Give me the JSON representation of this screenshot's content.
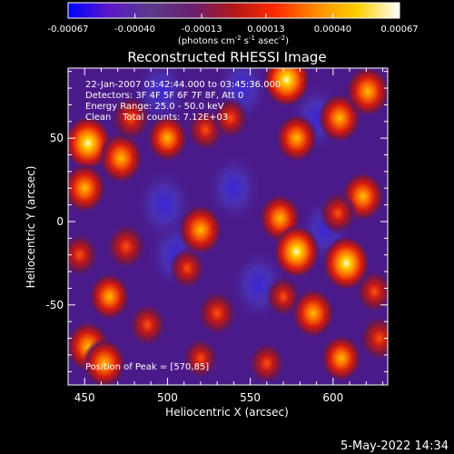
{
  "chart_data": {
    "type": "heatmap",
    "title": "Reconstructed RHESSI Image",
    "xlabel": "Heliocentric X (arcsec)",
    "ylabel": "Heliocentric Y (arcsec)",
    "x_range": [
      440,
      633
    ],
    "y_range": [
      -98,
      92
    ],
    "x_ticks": [
      450,
      500,
      550,
      600
    ],
    "y_ticks": [
      50,
      0,
      -50
    ],
    "colorbar": {
      "range": [
        -0.00067,
        0.00067
      ],
      "ticks": [
        "-0.00067",
        "-0.00040",
        "-0.00013",
        "0.00013",
        "0.00040",
        "0.00067"
      ],
      "unit_label": "(photons cm-2 s-1 asec-2)",
      "colormap": [
        "#0000ff",
        "#5c18c8",
        "#5a3a8a",
        "#6a2070",
        "#b01818",
        "#ff2a00",
        "#ff8c00",
        "#ffd000",
        "#ffffff"
      ]
    },
    "annotations": {
      "time": "22-Jan-2007 03:42:44.000 to 03:45:36.000",
      "detectors": "Detectors: 3F 4F 5F 6F 7F 8F, Att 0",
      "energy": "Energy Range: 25.0 - 50.0 keV",
      "clean": "Clean    Total counts: 7.12E+03",
      "peak": "Position of Peak = [570,85]"
    },
    "hot_sources": [
      {
        "x": 452,
        "y": 47,
        "level": 1.0
      },
      {
        "x": 450,
        "y": 20,
        "level": 0.85
      },
      {
        "x": 472,
        "y": 38,
        "level": 0.9
      },
      {
        "x": 478,
        "y": 62,
        "level": 0.7
      },
      {
        "x": 500,
        "y": 50,
        "level": 0.75
      },
      {
        "x": 523,
        "y": 55,
        "level": 0.6
      },
      {
        "x": 538,
        "y": 62,
        "level": 0.55
      },
      {
        "x": 572,
        "y": 85,
        "level": 1.0
      },
      {
        "x": 578,
        "y": 50,
        "level": 0.8
      },
      {
        "x": 604,
        "y": 62,
        "level": 0.85
      },
      {
        "x": 621,
        "y": 78,
        "level": 0.9
      },
      {
        "x": 618,
        "y": 15,
        "level": 0.85
      },
      {
        "x": 603,
        "y": 5,
        "level": 0.6
      },
      {
        "x": 568,
        "y": 2,
        "level": 0.8
      },
      {
        "x": 578,
        "y": -18,
        "level": 0.95
      },
      {
        "x": 608,
        "y": -25,
        "level": 1.0
      },
      {
        "x": 588,
        "y": -55,
        "level": 0.85
      },
      {
        "x": 570,
        "y": -45,
        "level": 0.5
      },
      {
        "x": 625,
        "y": -42,
        "level": 0.6
      },
      {
        "x": 520,
        "y": -5,
        "level": 0.9
      },
      {
        "x": 512,
        "y": -28,
        "level": 0.55
      },
      {
        "x": 530,
        "y": -55,
        "level": 0.7
      },
      {
        "x": 475,
        "y": -15,
        "level": 0.7
      },
      {
        "x": 465,
        "y": -45,
        "level": 0.75
      },
      {
        "x": 488,
        "y": -62,
        "level": 0.6
      },
      {
        "x": 452,
        "y": -75,
        "level": 0.9
      },
      {
        "x": 462,
        "y": -85,
        "level": 0.85
      },
      {
        "x": 520,
        "y": -82,
        "level": 0.5
      },
      {
        "x": 560,
        "y": -85,
        "level": 0.55
      },
      {
        "x": 605,
        "y": -82,
        "level": 0.75
      },
      {
        "x": 628,
        "y": -70,
        "level": 0.7
      },
      {
        "x": 447,
        "y": -20,
        "level": 0.6
      }
    ],
    "cold_sources": [
      {
        "x": 498,
        "y": 10,
        "level": 0.8
      },
      {
        "x": 505,
        "y": -20,
        "level": 0.7
      },
      {
        "x": 545,
        "y": 80,
        "level": 0.6
      },
      {
        "x": 555,
        "y": -38,
        "level": 0.75
      },
      {
        "x": 590,
        "y": 62,
        "level": 0.6
      },
      {
        "x": 595,
        "y": -5,
        "level": 0.5
      },
      {
        "x": 496,
        "y": 78,
        "level": 0.55
      },
      {
        "x": 540,
        "y": 20,
        "level": 0.65
      }
    ]
  },
  "footer": {
    "date": "5-May-2022 14:34"
  }
}
